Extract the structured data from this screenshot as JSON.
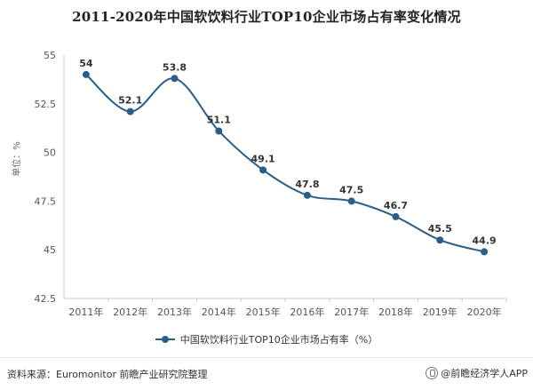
{
  "chart_data": {
    "type": "line",
    "title": "2011-2020年中国软饮料行业TOP10企业市场占有率变化情况",
    "xlabel": "",
    "ylabel": "单位：%",
    "categories": [
      "2011年",
      "2012年",
      "2013年",
      "2014年",
      "2015年",
      "2016年",
      "2017年",
      "2018年",
      "2019年",
      "2020年"
    ],
    "series": [
      {
        "name": "中国软饮料行业TOP10企业市场占有率（%）",
        "values": [
          54,
          52.1,
          53.8,
          51.1,
          49.1,
          47.8,
          47.5,
          46.7,
          45.5,
          44.9
        ],
        "value_labels": [
          "54",
          "52.1",
          "53.8",
          "51.1",
          "49.1",
          "47.8",
          "47.5",
          "46.7",
          "45.5",
          "44.9"
        ]
      }
    ],
    "ylim": [
      42.5,
      55
    ],
    "yticks": [
      42.5,
      45,
      47.5,
      50,
      52.5,
      55
    ],
    "ytick_labels": [
      "42.5",
      "45",
      "47.5",
      "50",
      "52.5",
      "55"
    ],
    "grid": false,
    "legend_position": "bottom-center",
    "color": "#2a5d88"
  },
  "footer": {
    "source": "资料来源：Euromonitor 前瞻产业研究院整理",
    "brand": "@前瞻经济学人APP",
    "brand_icon": "app-logo-icon"
  }
}
